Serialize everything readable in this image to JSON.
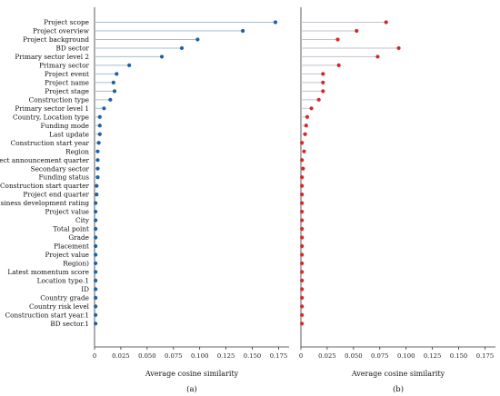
{
  "chart_data": [
    {
      "type": "lollipop",
      "panel_label": "(a)",
      "xlabel": "Average cosine similarity",
      "ylabel": "",
      "xlim": [
        0,
        0.185
      ],
      "xticks": [
        "0",
        "0.025",
        "0.050",
        "0.075",
        "0.100",
        "0.125",
        "0.150",
        "0.175"
      ],
      "grid": false,
      "colors": {
        "marker": "#1f5fa6",
        "stem": "#a9bccf"
      },
      "categories": [
        "Project scope",
        "Project overview",
        "Project background",
        "BD sector",
        "Primary sector level 2",
        "Primary sector",
        "Project event",
        "Project name",
        "Project stage",
        "Construction type",
        "Primary sector level 1",
        "Country, Location type",
        "Funding mode",
        "Last update",
        "Construction start year",
        "Region",
        "Project announcement quarter",
        "Secondary sector",
        "Funding status",
        "Construction start quarter",
        "Project end quarter",
        "Business development rating",
        "Project value",
        "City",
        "Total point",
        "Grade",
        "Placement",
        "Project value",
        "Region)",
        "Latest momentum score",
        "Location type.1",
        "ID",
        "Country grade",
        "Country risk level",
        "Construction start year.1",
        "BD sector.1"
      ],
      "values": [
        0.172,
        0.141,
        0.098,
        0.083,
        0.064,
        0.033,
        0.021,
        0.018,
        0.019,
        0.015,
        0.009,
        0.005,
        0.005,
        0.005,
        0.004,
        0.003,
        0.003,
        0.003,
        0.003,
        0.002,
        0.002,
        0.001,
        0.001,
        0.001,
        0.001,
        0.001,
        0.001,
        0.001,
        0.001,
        0.001,
        0.001,
        0.001,
        0.001,
        0.001,
        0.001,
        0.001
      ]
    },
    {
      "type": "lollipop",
      "panel_label": "(b)",
      "xlabel": "Average cosine similarity",
      "ylabel": "",
      "xlim": [
        0,
        0.185
      ],
      "xticks": [
        "0",
        "0.025",
        "0.050",
        "0.075",
        "0.100",
        "0.125",
        "0.150",
        "0.175"
      ],
      "grid": false,
      "colors": {
        "marker": "#d62728",
        "stem": "#c3c3cb"
      },
      "values": [
        0.081,
        0.053,
        0.035,
        0.093,
        0.073,
        0.036,
        0.021,
        0.021,
        0.021,
        0.017,
        0.01,
        0.006,
        0.005,
        0.004,
        0.001,
        0.003,
        0.001,
        0.002,
        0.001,
        0.001,
        0.001,
        0.001,
        0.001,
        0.001,
        0.001,
        0.001,
        0.001,
        0.001,
        0.001,
        0.001,
        0.001,
        0.001,
        0.001,
        0.001,
        0.001,
        0.001
      ]
    }
  ]
}
